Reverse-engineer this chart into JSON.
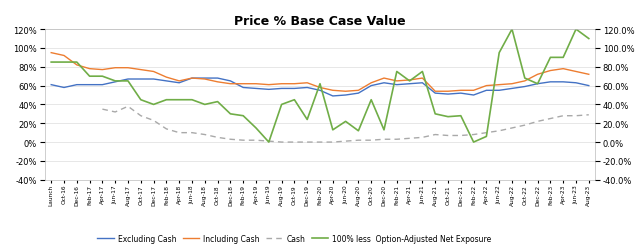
{
  "title": "Price % Base Case Value",
  "labels": [
    "Launch",
    "Oct-16",
    "Dec-16",
    "Feb-17",
    "Apr-17",
    "Jun-17",
    "Aug-17",
    "Oct-17",
    "Dec-17",
    "Feb-18",
    "Apr-18",
    "Jun-18",
    "Aug-18",
    "Oct-18",
    "Dec-18",
    "Feb-19",
    "Apr-19",
    "Jun-19",
    "Aug-19",
    "Oct-19",
    "Dec-19",
    "Feb-20",
    "Apr-20",
    "Jun-20",
    "Aug-20",
    "Oct-20",
    "Dec-20",
    "Feb-21",
    "Apr-21",
    "Jun-21",
    "Aug-21",
    "Oct-21",
    "Dec-21",
    "Feb-22",
    "Apr-22",
    "Jun-22",
    "Aug-22",
    "Oct-22",
    "Dec-22",
    "Feb-23",
    "Apr-23",
    "Jun-23",
    "Aug-23"
  ],
  "excluding_cash": [
    61,
    58,
    61,
    61,
    61,
    64,
    67,
    67,
    67,
    65,
    63,
    68,
    68,
    68,
    65,
    58,
    57,
    56,
    57,
    57,
    58,
    55,
    49,
    50,
    52,
    60,
    63,
    61,
    62,
    63,
    52,
    51,
    52,
    50,
    55,
    55,
    57,
    59,
    62,
    64,
    64,
    63,
    60
  ],
  "including_cash": [
    95,
    92,
    82,
    78,
    77,
    79,
    79,
    77,
    75,
    69,
    65,
    68,
    67,
    64,
    62,
    62,
    62,
    61,
    62,
    62,
    63,
    58,
    55,
    54,
    55,
    63,
    68,
    65,
    66,
    68,
    54,
    54,
    55,
    55,
    60,
    61,
    62,
    65,
    72,
    76,
    78,
    75,
    72
  ],
  "cash": [
    null,
    null,
    null,
    null,
    35,
    32,
    38,
    28,
    23,
    14,
    10,
    10,
    8,
    5,
    3,
    2,
    2,
    1,
    0,
    0,
    0,
    0,
    0,
    1,
    2,
    2,
    3,
    3,
    4,
    5,
    8,
    7,
    7,
    8,
    10,
    12,
    15,
    18,
    22,
    25,
    28,
    28,
    29
  ],
  "net_exposure": [
    85,
    85,
    85,
    70,
    70,
    65,
    65,
    45,
    40,
    45,
    45,
    45,
    40,
    43,
    30,
    28,
    15,
    0,
    40,
    45,
    24,
    62,
    13,
    22,
    12,
    45,
    13,
    75,
    65,
    75,
    30,
    27,
    28,
    0,
    6,
    95,
    120,
    68,
    62,
    90,
    90,
    120,
    110
  ],
  "ylim_left": [
    -40,
    120
  ],
  "ylim_right": [
    -40,
    120
  ],
  "left_yticks": [
    -40,
    -20,
    0,
    20,
    40,
    60,
    80,
    100,
    120
  ],
  "right_yticks": [
    -40,
    -20,
    0,
    20,
    40,
    60,
    80,
    100,
    120
  ],
  "color_excluding": "#4472C4",
  "color_including": "#ED7D31",
  "color_cash": "#A9A9A9",
  "color_net": "#70AD47",
  "legend_labels": [
    "Excluding Cash",
    "Including Cash",
    "Cash",
    "100% less  Option-Adjusted Net Exposure"
  ],
  "background_color": "#FFFFFF"
}
